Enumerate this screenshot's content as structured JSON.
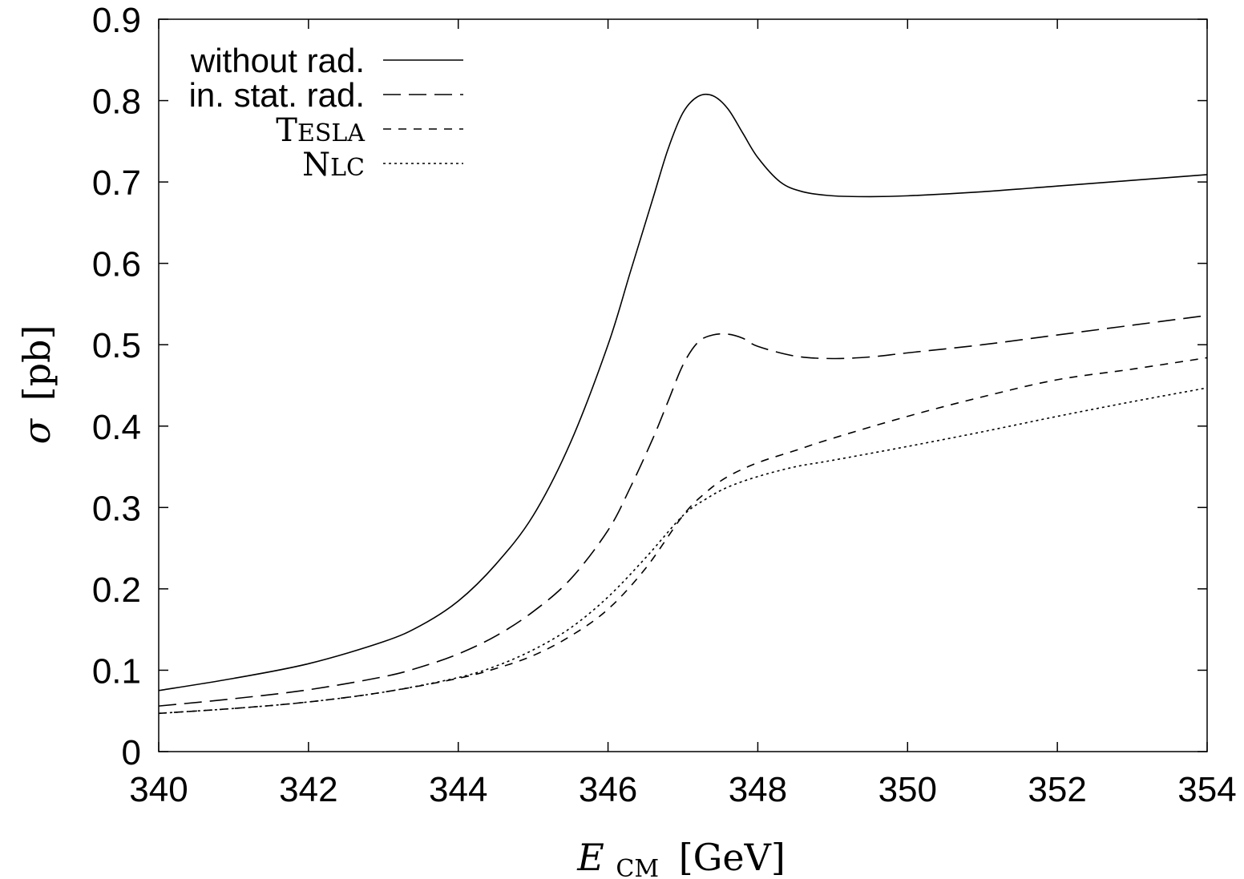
{
  "chart_data": {
    "type": "line",
    "xlabel": {
      "symbol": "E",
      "subscript": "CM",
      "unit": "[GeV]"
    },
    "ylabel": {
      "symbol": "σ",
      "unit": "[pb]"
    },
    "xlim": [
      340,
      354
    ],
    "ylim": [
      0,
      0.9
    ],
    "xticks": [
      340,
      342,
      344,
      346,
      348,
      350,
      352,
      354
    ],
    "yticks": [
      0,
      0.1,
      0.2,
      0.3,
      0.4,
      0.5,
      0.6,
      0.7,
      0.8,
      0.9
    ],
    "xtick_labels": [
      "340",
      "342",
      "344",
      "346",
      "348",
      "350",
      "352",
      "354"
    ],
    "ytick_labels": [
      "0",
      "0.1",
      "0.2",
      "0.3",
      "0.4",
      "0.5",
      "0.6",
      "0.7",
      "0.8",
      "0.9"
    ],
    "grid": false,
    "legend_position": "top-left",
    "series": [
      {
        "name": "without rad.",
        "style": "solid",
        "x": [
          340,
          341,
          342,
          343,
          343.5,
          344,
          344.5,
          345,
          345.5,
          346,
          346.3,
          346.6,
          346.8,
          347,
          347.2,
          347.4,
          347.6,
          347.8,
          348,
          348.3,
          348.6,
          349,
          349.5,
          350,
          351,
          352,
          353,
          354
        ],
        "y": [
          0.075,
          0.09,
          0.108,
          0.135,
          0.155,
          0.185,
          0.23,
          0.29,
          0.38,
          0.5,
          0.59,
          0.68,
          0.74,
          0.785,
          0.805,
          0.806,
          0.79,
          0.76,
          0.73,
          0.7,
          0.688,
          0.683,
          0.682,
          0.683,
          0.688,
          0.695,
          0.702,
          0.709
        ]
      },
      {
        "name": "in. stat. rad.",
        "style": "long-dash",
        "x": [
          340,
          341,
          342,
          343,
          343.5,
          344,
          344.5,
          345,
          345.5,
          346,
          346.3,
          346.6,
          346.8,
          347,
          347.2,
          347.4,
          347.6,
          347.8,
          348,
          348.5,
          349,
          349.5,
          350,
          351,
          352,
          353,
          354
        ],
        "y": [
          0.056,
          0.065,
          0.076,
          0.092,
          0.104,
          0.12,
          0.142,
          0.172,
          0.212,
          0.272,
          0.325,
          0.385,
          0.43,
          0.475,
          0.503,
          0.512,
          0.513,
          0.508,
          0.498,
          0.486,
          0.483,
          0.485,
          0.49,
          0.5,
          0.512,
          0.524,
          0.536
        ]
      },
      {
        "name": "TESLA",
        "style": "short-dash",
        "x": [
          340,
          341,
          342,
          343,
          344,
          344.5,
          345,
          345.5,
          346,
          346.5,
          347,
          347.3,
          347.6,
          348,
          348.5,
          349,
          350,
          351,
          352,
          353,
          354
        ],
        "y": [
          0.047,
          0.053,
          0.061,
          0.073,
          0.09,
          0.102,
          0.118,
          0.142,
          0.175,
          0.225,
          0.29,
          0.318,
          0.338,
          0.355,
          0.37,
          0.385,
          0.412,
          0.436,
          0.457,
          0.47,
          0.484
        ]
      },
      {
        "name": "NLC",
        "style": "dotted",
        "x": [
          340,
          341,
          342,
          343,
          344,
          344.5,
          345,
          345.5,
          346,
          346.5,
          347,
          347.3,
          347.6,
          348,
          348.5,
          349,
          350,
          351,
          352,
          353,
          354
        ],
        "y": [
          0.047,
          0.053,
          0.061,
          0.073,
          0.091,
          0.105,
          0.125,
          0.152,
          0.19,
          0.238,
          0.29,
          0.31,
          0.325,
          0.338,
          0.35,
          0.358,
          0.375,
          0.393,
          0.412,
          0.43,
          0.447
        ]
      }
    ]
  }
}
